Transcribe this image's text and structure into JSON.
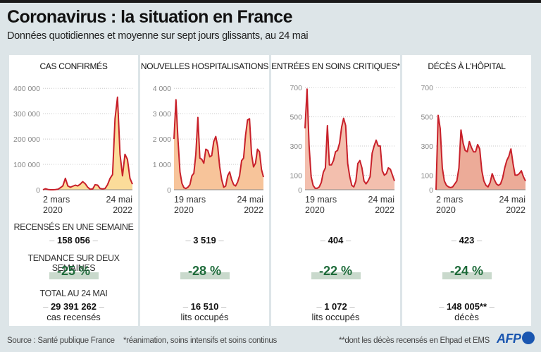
{
  "header": {
    "title": "Coronavirus : la situation en France",
    "subtitle": "Données quotidiennes et moyenne sur sept jours glissants, au 24 mai"
  },
  "stat_labels": {
    "weekly": "RECENSÉS EN UNE SEMAINE",
    "trend": "TENDANCE SUR DEUX SEMAINES",
    "total": "TOTAL AU 24 MAI"
  },
  "panels": [
    {
      "title": "CAS CONFIRMÉS",
      "weekly": "158 056",
      "trend": "-25 %",
      "total": "29 391 262",
      "unit": "cas recensés"
    },
    {
      "title": "NOUVELLES HOSPITALISATIONS",
      "weekly": "3 519",
      "trend": "-28 %",
      "total": "16 510",
      "unit": "lits occupés"
    },
    {
      "title": "ENTRÉES EN SOINS CRITIQUES*",
      "weekly": "404",
      "trend": "-22 %",
      "total": "1 072",
      "unit": "lits occupés"
    },
    {
      "title": "DÉCÈS À L'HÔPITAL",
      "weekly": "423",
      "trend": "-24 %",
      "total": "148 005**",
      "unit": "décès"
    }
  ],
  "footer": {
    "source": "Source : Santé publique France",
    "note1": "*réanimation, soins intensifs et soins continus",
    "note2": "**dont les décès recensés en Ehpad et EMS",
    "logo": "AFP"
  },
  "colors": {
    "line": "#c8202a",
    "fill_cases": "#fbdc9a",
    "fill_hosp": "#f7c49a",
    "fill_icu": "#f3bfae",
    "fill_deaths": "#ecab98",
    "trend_text": "#1e6b3a",
    "trend_bar": "#c9d9cc",
    "brand": "#1a56b0"
  },
  "chart_data": [
    {
      "type": "area",
      "title": "CAS CONFIRMÉS",
      "x_start_label": [
        "2 mars",
        "2020"
      ],
      "x_end_label": [
        "24 mai",
        "2022"
      ],
      "yticks": [
        0,
        100000,
        200000,
        300000,
        400000
      ],
      "ytick_labels": [
        "0",
        "100 000",
        "200 000",
        "300 000",
        "400 000"
      ],
      "ylim": [
        0,
        420000
      ],
      "series_name": "moyenne sur sept jours",
      "values": [
        0,
        4000,
        1000,
        0,
        0,
        500,
        2000,
        8000,
        15000,
        45000,
        15000,
        10000,
        14000,
        18000,
        15000,
        22000,
        32000,
        24000,
        10000,
        2000,
        3000,
        20000,
        18000,
        5000,
        3000,
        5000,
        20000,
        45000,
        60000,
        280000,
        365000,
        140000,
        55000,
        140000,
        120000,
        45000,
        22000
      ]
    },
    {
      "type": "area",
      "title": "NOUVELLES HOSPITALISATIONS",
      "x_start_label": [
        "19 mars",
        "2020"
      ],
      "x_end_label": [
        "24 mai",
        "2022"
      ],
      "yticks": [
        0,
        1000,
        2000,
        3000,
        4000
      ],
      "ytick_labels": [
        "0",
        "1 000",
        "2 000",
        "3 000",
        "4 000"
      ],
      "ylim": [
        0,
        4200
      ],
      "series_name": "moyenne sur sept jours",
      "values": [
        2000,
        3550,
        2000,
        700,
        250,
        80,
        50,
        100,
        200,
        550,
        650,
        1400,
        2850,
        1250,
        1200,
        1050,
        1600,
        1550,
        1300,
        1350,
        1900,
        2100,
        1700,
        900,
        400,
        100,
        150,
        550,
        700,
        400,
        200,
        150,
        300,
        550,
        1150,
        1250,
        2150,
        2750,
        2800,
        1400,
        900,
        1050,
        1600,
        1500,
        800,
        500
      ]
    },
    {
      "type": "area",
      "title": "ENTRÉES EN SOINS CRITIQUES*",
      "x_start_label": [
        "19 mars",
        "2020"
      ],
      "x_end_label": [
        "24 mai",
        "2022"
      ],
      "yticks": [
        0,
        100,
        300,
        500,
        700
      ],
      "ytick_labels": [
        "0",
        "100",
        "300",
        "500",
        "700"
      ],
      "ylim": [
        0,
        730
      ],
      "series_name": "moyenne sur sept jours",
      "values": [
        420,
        690,
        300,
        90,
        30,
        10,
        10,
        20,
        50,
        120,
        150,
        440,
        170,
        170,
        200,
        260,
        270,
        320,
        430,
        490,
        440,
        180,
        90,
        30,
        20,
        60,
        180,
        200,
        150,
        60,
        40,
        60,
        90,
        250,
        300,
        340,
        300,
        300,
        130,
        100,
        110,
        150,
        140,
        100,
        60
      ]
    },
    {
      "type": "area",
      "title": "DÉCÈS À L'HÔPITAL",
      "x_start_label": [
        "2 mars",
        "2020"
      ],
      "x_end_label": [
        "24 mai",
        "2022"
      ],
      "yticks": [
        0,
        100,
        300,
        500,
        700
      ],
      "ytick_labels": [
        "0",
        "100",
        "300",
        "500",
        "700"
      ],
      "ylim": [
        0,
        730
      ],
      "series_name": "moyenne sur sept jours",
      "values": [
        0,
        510,
        420,
        150,
        60,
        30,
        20,
        15,
        20,
        40,
        60,
        150,
        410,
        320,
        270,
        260,
        330,
        290,
        260,
        260,
        310,
        280,
        130,
        60,
        30,
        20,
        50,
        110,
        70,
        40,
        30,
        40,
        80,
        150,
        200,
        230,
        280,
        180,
        100,
        100,
        110,
        130,
        90,
        60
      ]
    }
  ]
}
